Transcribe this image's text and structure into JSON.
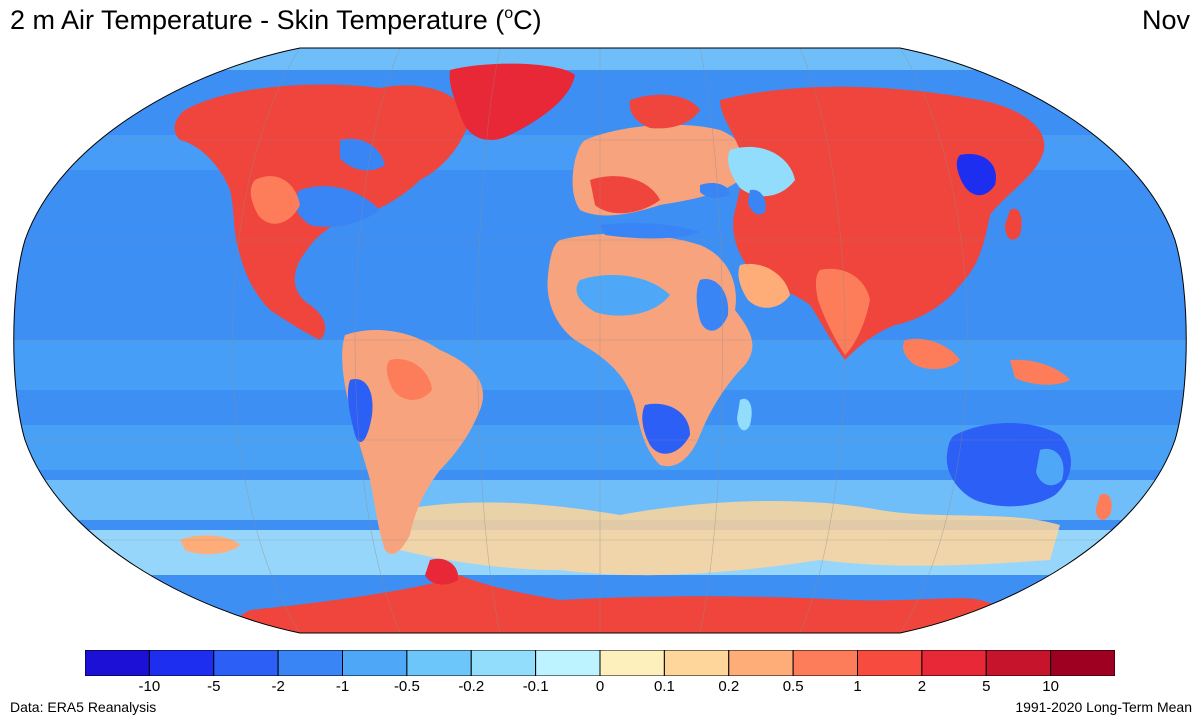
{
  "title": {
    "main": "2 m Air Temperature - Skin Temperature (",
    "sup": "o",
    "unit_tail": "C)"
  },
  "month": "Nov",
  "colorbar": {
    "colors": [
      "#1c0fd6",
      "#1e2ef0",
      "#2c5ff5",
      "#3a85f5",
      "#4ea8f7",
      "#6cc6fa",
      "#93ddfc",
      "#bdf3fe",
      "#fdf0bd",
      "#fed59a",
      "#fead78",
      "#fd7d5a",
      "#f64b3e",
      "#e82737",
      "#c7142d",
      "#9e0022"
    ],
    "ticks": [
      "-10",
      "-5",
      "-2",
      "-1",
      "-0.5",
      "-0.2",
      "-0.1",
      "0",
      "0.1",
      "0.2",
      "0.5",
      "1",
      "2",
      "5",
      "10"
    ]
  },
  "map": {
    "ocean_color": "#3d8ff4",
    "land_warm_color": "#f0453c",
    "land_cool_color": "#f7a47e",
    "antarctica_color": "#f0453c"
  },
  "footer": {
    "source": "Data: ERA5 Reanalysis",
    "period": "1991-2020 Long-Term Mean"
  }
}
